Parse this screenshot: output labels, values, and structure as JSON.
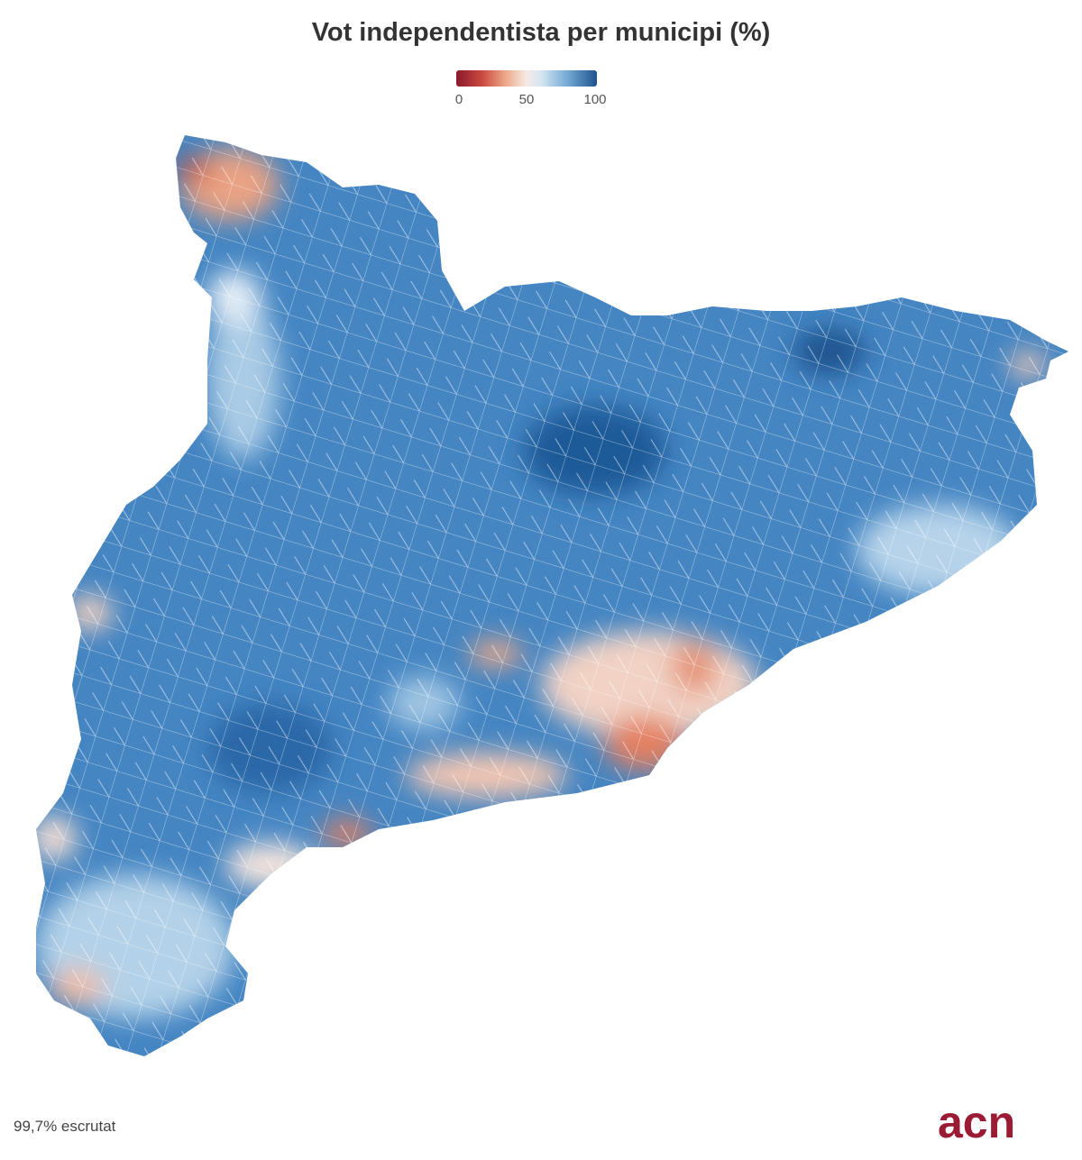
{
  "title": "Vot independentista per municipi (%)",
  "legend": {
    "min_label": "0",
    "mid_label": "50",
    "max_label": "100",
    "colors": [
      "#8b1a2b",
      "#eda888",
      "#f6ebe6",
      "#78aed6",
      "#1d538e"
    ]
  },
  "footer": {
    "status": "99,7% escrutat",
    "logo_text": "acn",
    "logo_color": "#9b1b35"
  }
}
